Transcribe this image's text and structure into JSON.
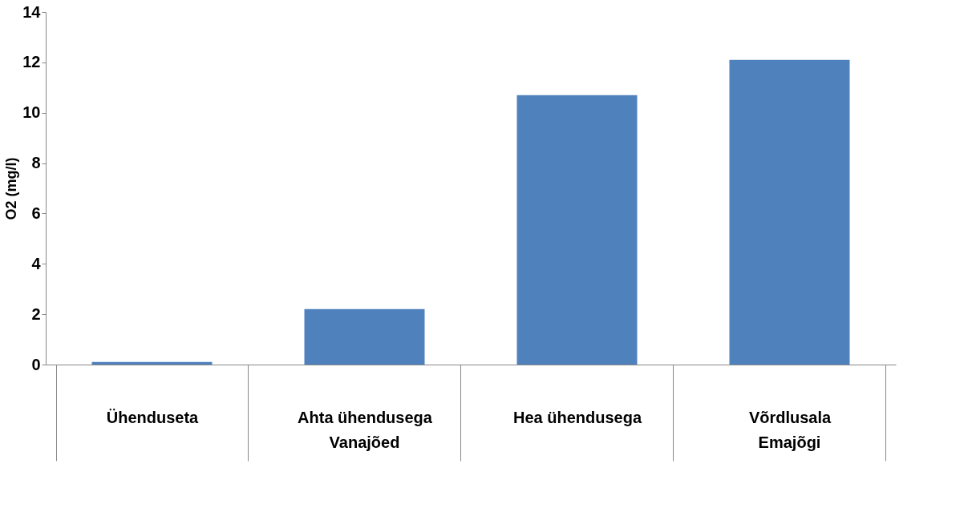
{
  "chart_data": {
    "type": "bar",
    "ylabel": "O2 (mg/l)",
    "categories": [
      "Ühenduseta",
      "Ahta ühendusega",
      "Hea ühendusega",
      "Võrdlusala"
    ],
    "values": [
      0.1,
      2.2,
      10.7,
      12.1
    ],
    "color": "#4f81bd",
    "ylim": [
      0,
      14
    ],
    "yticks": [
      0,
      2,
      4,
      6,
      8,
      10,
      12,
      14
    ],
    "grid": false,
    "annotations": [
      "Vanajõed",
      "Emajõgi"
    ]
  }
}
